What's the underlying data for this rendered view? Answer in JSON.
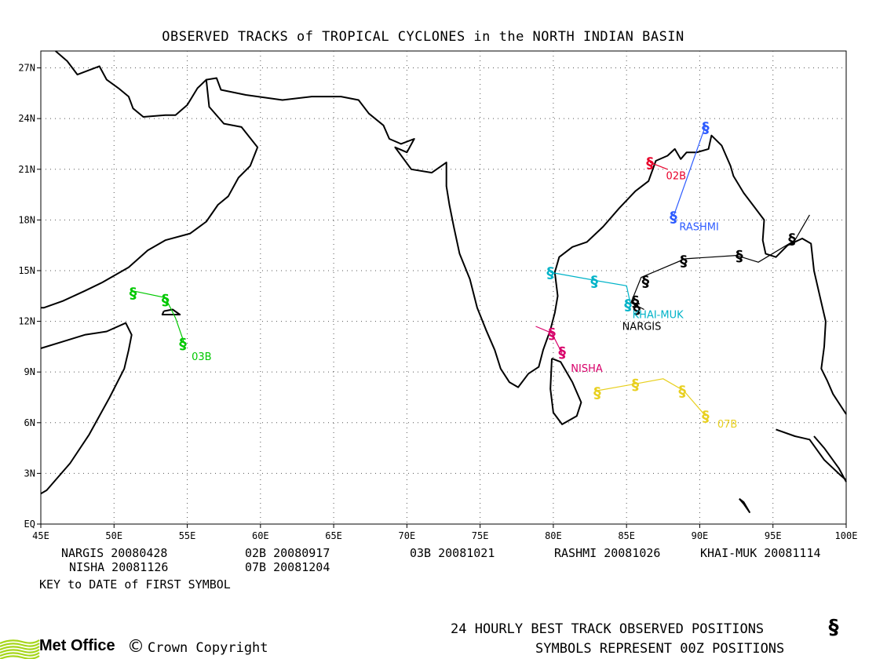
{
  "title": "OBSERVED TRACKS of TROPICAL CYCLONES in the NORTH INDIAN BASIN",
  "axes": {
    "x_ticks": [
      "45E",
      "50E",
      "55E",
      "60E",
      "65E",
      "70E",
      "75E",
      "80E",
      "85E",
      "90E",
      "95E",
      "100E"
    ],
    "y_ticks": [
      "EQ",
      "3N",
      "6N",
      "9N",
      "12N",
      "15N",
      "18N",
      "21N",
      "24N",
      "27N"
    ]
  },
  "storms": [
    {
      "name": "NARGIS",
      "label": "NARGIS",
      "color": "#000000",
      "track": [
        [
          97.5,
          18.3
        ],
        [
          96.5,
          16.8
        ],
        [
          94,
          15.5
        ],
        [
          92.5,
          15.9
        ],
        [
          89,
          15.7
        ],
        [
          86,
          14.6
        ],
        [
          85.3,
          13.1
        ],
        [
          86.2,
          12.7
        ]
      ],
      "symbols": [
        [
          96.3,
          16.9
        ],
        [
          92.7,
          15.9
        ],
        [
          88.9,
          15.6
        ],
        [
          86.3,
          14.4
        ],
        [
          85.6,
          13.2
        ],
        [
          85.7,
          12.8
        ]
      ]
    },
    {
      "name": "KHAI-MUK",
      "label": "KHAI-MUK",
      "color": "#00b3c8",
      "track": [
        [
          79.8,
          14.9
        ],
        [
          83,
          14.4
        ],
        [
          85,
          14.1
        ],
        [
          85.3,
          12.9
        ]
      ],
      "symbols": [
        [
          79.8,
          14.9
        ],
        [
          82.8,
          14.4
        ],
        [
          85.1,
          13.0
        ]
      ]
    },
    {
      "name": "02B",
      "label": "02B",
      "color": "#e8002a",
      "track": [
        [
          86.6,
          21.4
        ],
        [
          87.8,
          21.0
        ]
      ],
      "symbols": [
        [
          86.6,
          21.4
        ]
      ]
    },
    {
      "name": "RASHMI",
      "label": "RASHMI",
      "color": "#2d5bff",
      "track": [
        [
          90.4,
          23.6
        ],
        [
          88.2,
          18.2
        ]
      ],
      "symbols": [
        [
          90.4,
          23.5
        ],
        [
          88.2,
          18.2
        ]
      ]
    },
    {
      "name": "03B",
      "label": "03B",
      "color": "#00c800",
      "track": [
        [
          51.3,
          13.8
        ],
        [
          53.5,
          13.4
        ],
        [
          54.2,
          12.2
        ],
        [
          54.8,
          10.7
        ]
      ],
      "symbols": [
        [
          51.3,
          13.7
        ],
        [
          53.5,
          13.3
        ],
        [
          54.7,
          10.7
        ]
      ]
    },
    {
      "name": "NISHA",
      "label": "NISHA",
      "color": "#d8006a",
      "track": [
        [
          78.8,
          11.7
        ],
        [
          79.9,
          11.3
        ],
        [
          80.6,
          10.1
        ]
      ],
      "symbols": [
        [
          79.9,
          11.3
        ],
        [
          80.6,
          10.2
        ]
      ]
    },
    {
      "name": "07B",
      "label": "07B",
      "color": "#e8d020",
      "track": [
        [
          83,
          7.9
        ],
        [
          85.6,
          8.3
        ],
        [
          87.5,
          8.6
        ],
        [
          88.9,
          7.9
        ],
        [
          90.4,
          6.4
        ]
      ],
      "symbols": [
        [
          83,
          7.8
        ],
        [
          85.6,
          8.3
        ],
        [
          88.8,
          7.9
        ],
        [
          90.4,
          6.4
        ]
      ]
    }
  ],
  "legend": {
    "row1": [
      "NARGIS 20080428",
      "02B 20080917",
      "03B 20081021",
      "RASHMI 20081026",
      "KHAI-MUK 20081114"
    ],
    "row2": [
      "NISHA 20081126",
      "07B 20081204"
    ],
    "key": "KEY to DATE of FIRST SYMBOL"
  },
  "notes": {
    "line1": "24 HOURLY BEST TRACK OBSERVED POSITIONS",
    "line2": "SYMBOLS REPRESENT 00Z POSITIONS"
  },
  "footer": {
    "brand": "Met Office",
    "copyright": "Crown Copyright",
    "logo_color": "#a6d61a"
  }
}
